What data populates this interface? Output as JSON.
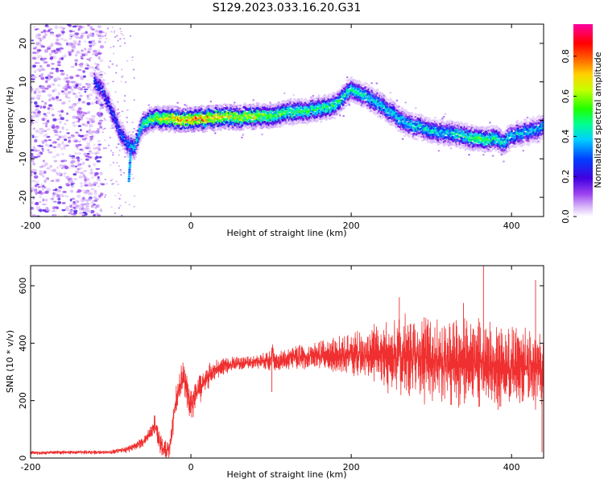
{
  "title": "S129.2023.033.16.20.G31",
  "colors": {
    "snr_line": "#f03030",
    "track_low": "#4a00e0",
    "track_high": "#ff2000",
    "scatter": "#b98ef0",
    "axis": "#000000"
  },
  "chart_data": [
    {
      "type": "heatmap",
      "title": "S129.2023.033.16.20.G31",
      "xlabel": "Height of straight line (km)",
      "ylabel": "Frequency (Hz)",
      "xlim": [
        -200,
        440
      ],
      "ylim": [
        -25,
        25
      ],
      "xticks": [
        -200,
        0,
        200,
        400
      ],
      "yticks": [
        -20,
        -10,
        0,
        10,
        20
      ],
      "grid": false,
      "colorbar": {
        "label": "Normalized spectral amplitude",
        "range": [
          0,
          0.96
        ],
        "ticks": [
          0.0,
          0.2,
          0.4,
          0.6,
          0.8
        ],
        "colormap": "rainbow (white-purple-blue-cyan-green-yellow-orange-red-magenta)"
      },
      "ridge": {
        "x": [
          -120,
          -110,
          -100,
          -90,
          -80,
          -70,
          -60,
          -50,
          -40,
          -20,
          0,
          20,
          40,
          60,
          80,
          100,
          120,
          140,
          160,
          180,
          190,
          200,
          210,
          230,
          250,
          270,
          290,
          310,
          330,
          350,
          370,
          380,
          390,
          400,
          420,
          440
        ],
        "y": [
          10,
          8,
          3,
          -2,
          -6,
          -7,
          -1,
          0.5,
          0.5,
          0.3,
          0.3,
          0.5,
          0.8,
          0.8,
          1,
          1.3,
          2,
          2.5,
          3,
          4,
          6,
          8,
          7,
          5,
          2,
          -1,
          -2,
          -3,
          -3.5,
          -4.5,
          -5,
          -4.5,
          -6,
          -4,
          -3,
          -2
        ]
      },
      "ridge_intensity": {
        "x": [
          -120,
          -100,
          -80,
          -60,
          -40,
          -20,
          0,
          20,
          40,
          60,
          80,
          100,
          140,
          180,
          200,
          240,
          280,
          320,
          360,
          400,
          440
        ],
        "value": [
          0.3,
          0.3,
          0.35,
          0.5,
          0.7,
          0.8,
          0.85,
          0.85,
          0.75,
          0.7,
          0.7,
          0.6,
          0.55,
          0.55,
          0.5,
          0.45,
          0.45,
          0.45,
          0.6,
          0.45,
          0.4
        ]
      }
    },
    {
      "type": "line",
      "xlabel": "Height of straight line (km)",
      "ylabel": "SNR (10 * v/v)",
      "xlim": [
        -200,
        440
      ],
      "ylim": [
        0,
        670
      ],
      "xticks": [
        -200,
        0,
        200,
        400
      ],
      "yticks": [
        0,
        200,
        400,
        600
      ],
      "grid": false,
      "series": [
        {
          "x": [
            -200,
            -150,
            -100,
            -80,
            -60,
            -50,
            -45,
            -40,
            -35,
            -30,
            -25,
            -20,
            -15,
            -10,
            0,
            10,
            20,
            30,
            40,
            60,
            80,
            100,
            101,
            105,
            120,
            150,
            200,
            250,
            260,
            300,
            350,
            400,
            440
          ],
          "y": [
            18,
            20,
            20,
            30,
            55,
            90,
            120,
            60,
            30,
            20,
            60,
            180,
            240,
            290,
            180,
            240,
            280,
            310,
            320,
            330,
            335,
            340,
            380,
            330,
            345,
            355,
            360,
            355,
            360,
            340,
            330,
            320,
            315
          ],
          "noise_amplitude": {
            "x": [
              -200,
              -100,
              -60,
              -30,
              0,
              20,
              40,
              60,
              80,
              100,
              150,
              200,
              250,
              300,
              350,
              400,
              440
            ],
            "y": [
              6,
              6,
              15,
              40,
              50,
              40,
              25,
              20,
              20,
              30,
              40,
              60,
              110,
              130,
              130,
              120,
              120
            ]
          },
          "spikes": [
            {
              "x": 101,
              "y": 385
            },
            {
              "x": 101,
              "y": 230
            },
            {
              "x": 260,
              "y": 560
            },
            {
              "x": 340,
              "y": 540
            },
            {
              "x": 365,
              "y": 670
            },
            {
              "x": 430,
              "y": 620
            },
            {
              "x": 438,
              "y": 20
            }
          ]
        }
      ]
    }
  ]
}
